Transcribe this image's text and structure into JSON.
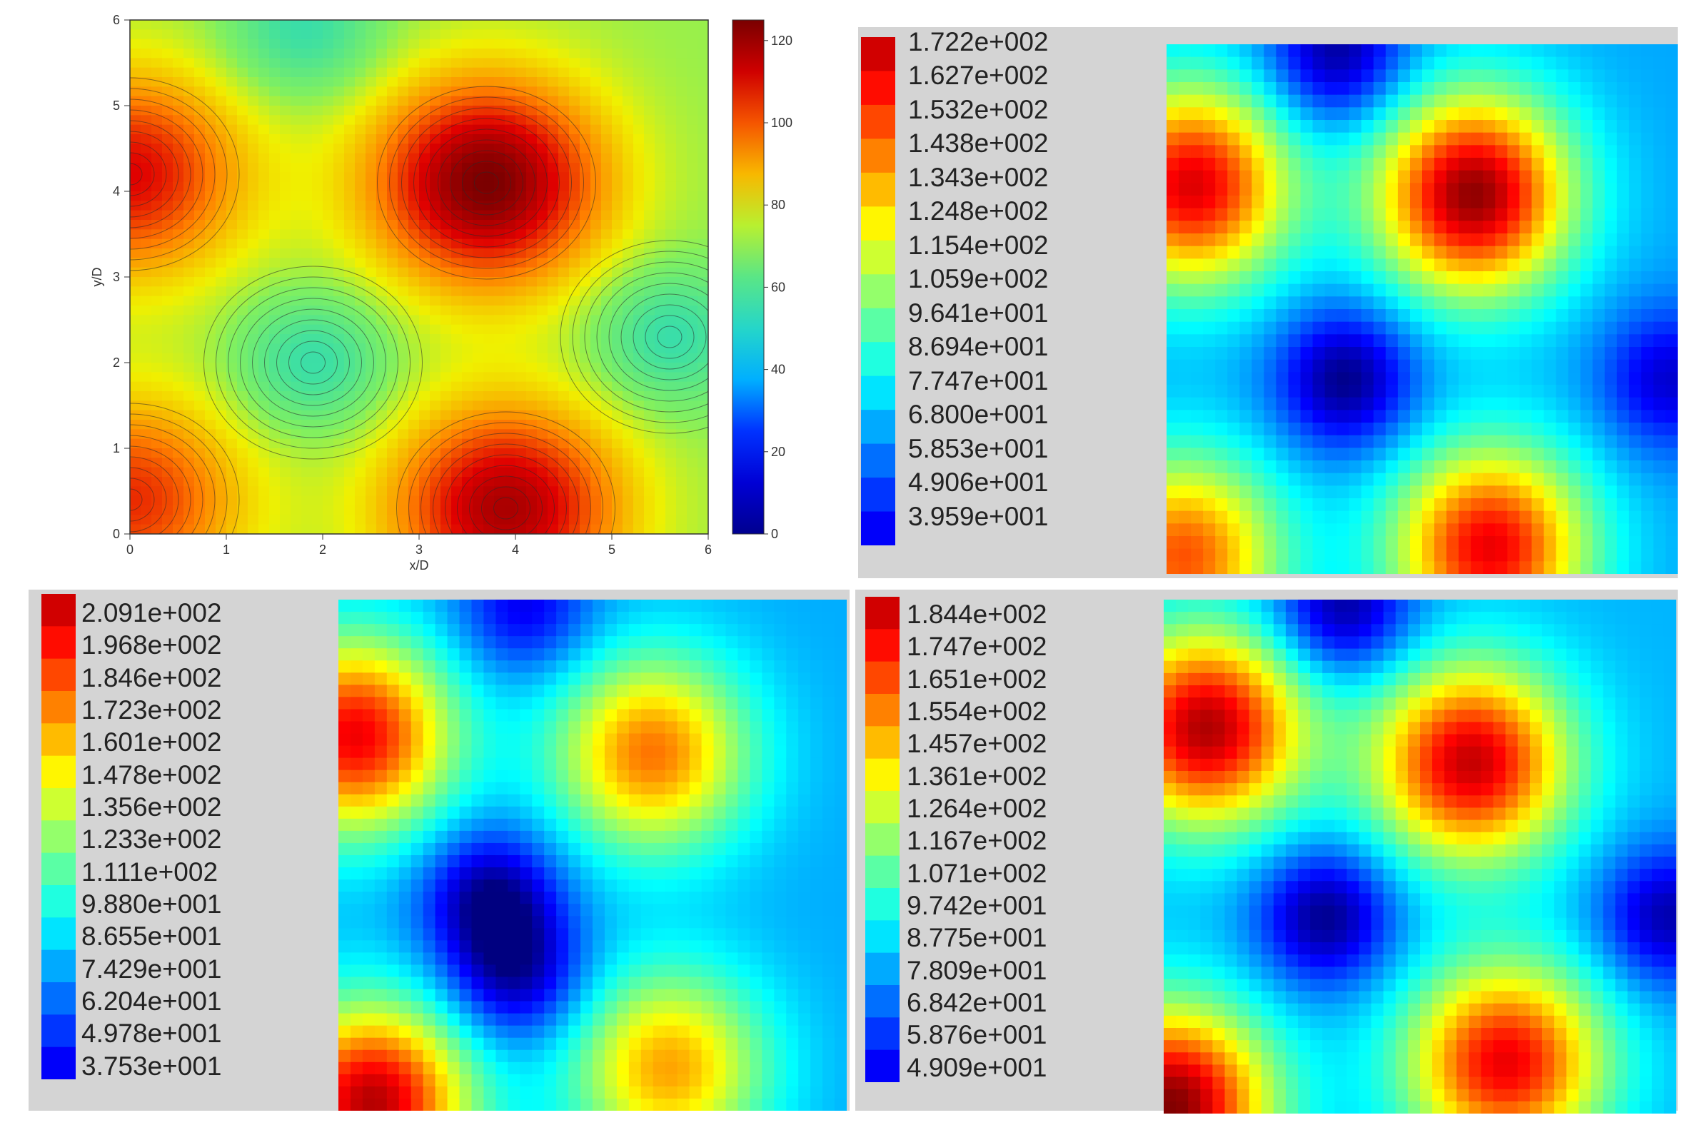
{
  "chart_data": [
    {
      "type": "heatmap",
      "panel": "top-left",
      "title": "",
      "xlabel": "x/D",
      "ylabel": "y/D",
      "xlim": [
        0,
        6
      ],
      "ylim": [
        0,
        6
      ],
      "xticks": [
        "0",
        "1",
        "2",
        "3",
        "4",
        "5",
        "6"
      ],
      "yticks": [
        "0",
        "1",
        "2",
        "3",
        "4",
        "5",
        "6"
      ],
      "colorbar": {
        "min": 0,
        "max": 125,
        "ticks": [
          "0",
          "20",
          "40",
          "60",
          "80",
          "100",
          "120"
        ]
      },
      "contours": true,
      "hotspots": [
        {
          "x": 0.0,
          "y": 4.2,
          "value": 110
        },
        {
          "x": 3.7,
          "y": 4.1,
          "value": 125
        },
        {
          "x": 0.0,
          "y": 0.4,
          "value": 105
        },
        {
          "x": 3.9,
          "y": 0.3,
          "value": 118
        }
      ],
      "coldspots": [
        {
          "x": 1.9,
          "y": 2.0,
          "value": 55
        },
        {
          "x": 5.6,
          "y": 2.3,
          "value": 55
        },
        {
          "x": 1.8,
          "y": 5.9,
          "value": 55
        }
      ],
      "background_value": 72
    },
    {
      "type": "heatmap",
      "panel": "top-right",
      "colorbar_labels": [
        "1.722e+002",
        "1.627e+002",
        "1.532e+002",
        "1.438e+002",
        "1.343e+002",
        "1.248e+002",
        "1.154e+002",
        "1.059e+002",
        "9.641e+001",
        "8.694e+001",
        "7.747e+001",
        "6.800e+001",
        "5.853e+001",
        "4.906e+001",
        "3.959e+001"
      ],
      "range": [
        39.59,
        172.2
      ],
      "hotspots": [
        {
          "x": 0.3,
          "y": 4.4,
          "value": 160
        },
        {
          "x": 3.6,
          "y": 4.3,
          "value": 170
        },
        {
          "x": 0.2,
          "y": 0.2,
          "value": 145
        },
        {
          "x": 3.8,
          "y": 0.3,
          "value": 158
        }
      ],
      "coldspots": [
        {
          "x": 2.1,
          "y": 2.2,
          "value": 40
        },
        {
          "x": 2.0,
          "y": 5.9,
          "value": 42
        },
        {
          "x": 5.9,
          "y": 2.2,
          "value": 50
        }
      ],
      "background_value": 78
    },
    {
      "type": "heatmap",
      "panel": "bottom-left",
      "colorbar_labels": [
        "2.091e+002",
        "1.968e+002",
        "1.846e+002",
        "1.723e+002",
        "1.601e+002",
        "1.478e+002",
        "1.356e+002",
        "1.233e+002",
        "1.111e+002",
        "9.880e+001",
        "8.655e+001",
        "7.429e+001",
        "6.204e+001",
        "4.978e+001",
        "3.753e+001"
      ],
      "range": [
        37.53,
        209.1
      ],
      "hotspots": [
        {
          "x": 0.2,
          "y": 4.4,
          "value": 190
        },
        {
          "x": 3.7,
          "y": 4.2,
          "value": 168
        },
        {
          "x": 0.4,
          "y": 0.1,
          "value": 200
        },
        {
          "x": 3.9,
          "y": 0.5,
          "value": 160
        }
      ],
      "coldspots": [
        {
          "x": 1.8,
          "y": 2.5,
          "value": 40
        },
        {
          "x": 2.1,
          "y": 1.6,
          "value": 45
        },
        {
          "x": 2.2,
          "y": 5.9,
          "value": 55
        }
      ],
      "background_value": 88
    },
    {
      "type": "heatmap",
      "panel": "bottom-right",
      "colorbar_labels": [
        "1.844e+002",
        "1.747e+002",
        "1.651e+002",
        "1.554e+002",
        "1.457e+002",
        "1.361e+002",
        "1.264e+002",
        "1.167e+002",
        "1.071e+002",
        "9.742e+001",
        "8.775e+001",
        "7.809e+001",
        "6.842e+001",
        "5.876e+001",
        "4.909e+001"
      ],
      "range": [
        49.09,
        184.4
      ],
      "hotspots": [
        {
          "x": 0.5,
          "y": 4.5,
          "value": 178
        },
        {
          "x": 3.6,
          "y": 4.1,
          "value": 175
        },
        {
          "x": 0.1,
          "y": 0.1,
          "value": 184
        },
        {
          "x": 4.0,
          "y": 0.6,
          "value": 170
        }
      ],
      "coldspots": [
        {
          "x": 1.9,
          "y": 2.3,
          "value": 50
        },
        {
          "x": 2.1,
          "y": 5.9,
          "value": 52
        },
        {
          "x": 5.9,
          "y": 2.3,
          "value": 55
        }
      ],
      "background_value": 90
    }
  ]
}
